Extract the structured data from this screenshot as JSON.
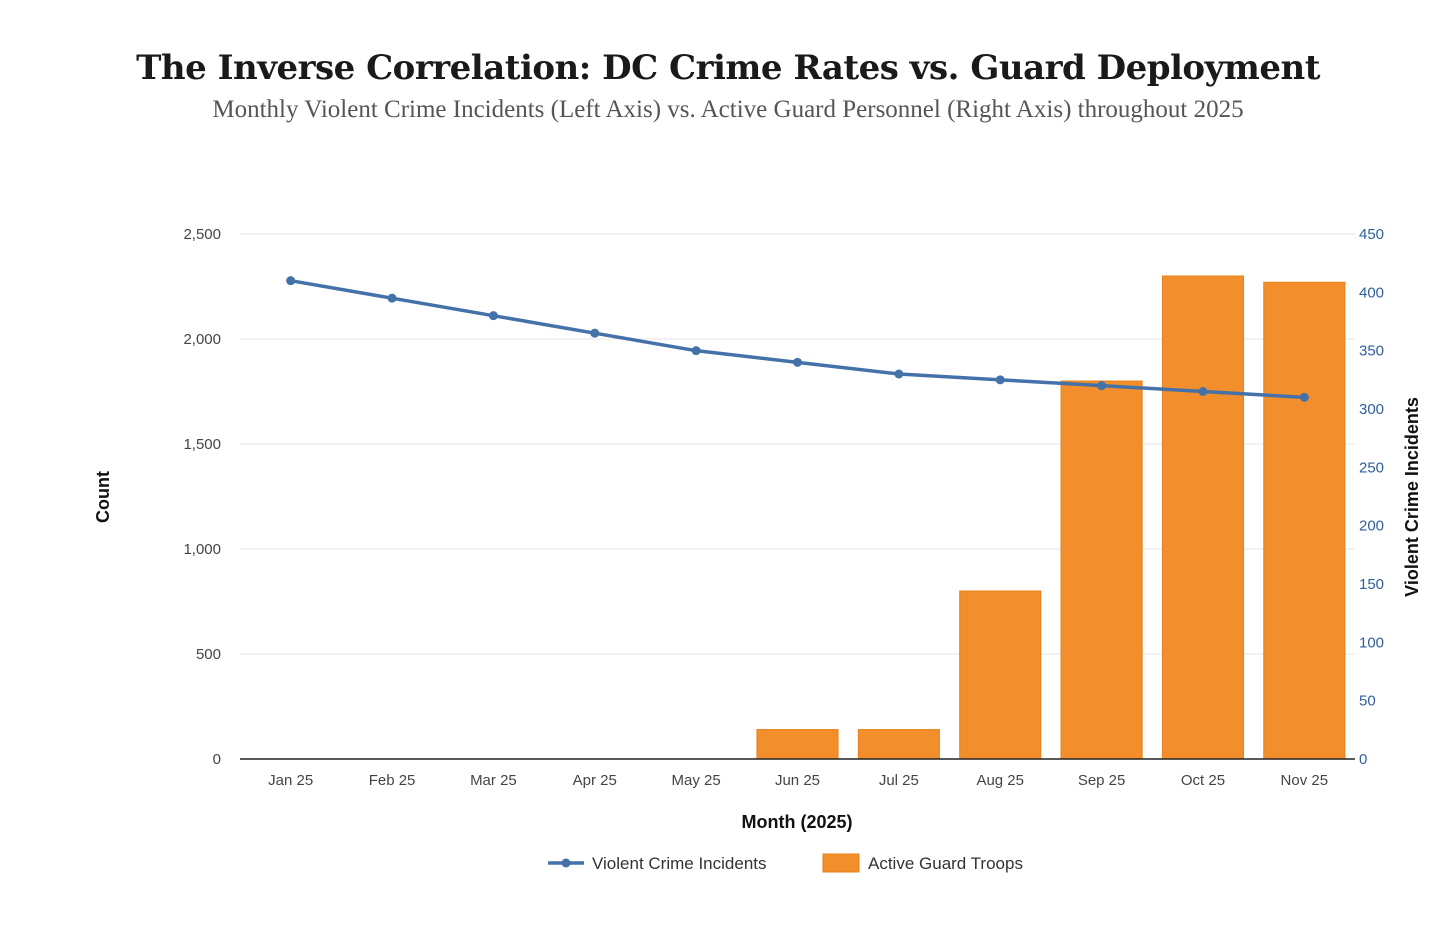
{
  "title": "The Inverse Correlation: DC Crime Rates vs. Guard Deployment",
  "subtitle": "Monthly Violent Crime Incidents (Left Axis) vs. Active Guard Personnel (Right Axis) throughout 2025",
  "chart_data": {
    "type": "bar+line",
    "categories": [
      "Jan 25",
      "Feb 25",
      "Mar 25",
      "Apr 25",
      "May 25",
      "Jun 25",
      "Jul 25",
      "Aug 25",
      "Sep 25",
      "Oct 25",
      "Nov 25"
    ],
    "xlabel": "Month (2025)",
    "ylabel_left": "Count",
    "ylabel_right": "Violent Crime Incidents",
    "ylim_left": [
      0,
      2500
    ],
    "yticks_left": [
      "0",
      "500",
      "1,000",
      "1,500",
      "2,000",
      "2,500"
    ],
    "ylim_right": [
      0,
      450
    ],
    "yticks_right": [
      "0",
      "50",
      "100",
      "150",
      "200",
      "250",
      "300",
      "350",
      "400",
      "450"
    ],
    "grid": true,
    "legend_position": "bottom",
    "series": [
      {
        "name": "Violent Crime Incidents",
        "type": "line",
        "axis": "right",
        "color": "#4472a8",
        "values": [
          410,
          395,
          380,
          365,
          350,
          340,
          330,
          325,
          320,
          315,
          310
        ]
      },
      {
        "name": "Active Guard Troops",
        "type": "bar",
        "axis": "left",
        "color": "#f28e2b",
        "values": [
          0,
          0,
          0,
          0,
          0,
          140,
          140,
          800,
          1800,
          2300,
          2270
        ]
      }
    ]
  }
}
